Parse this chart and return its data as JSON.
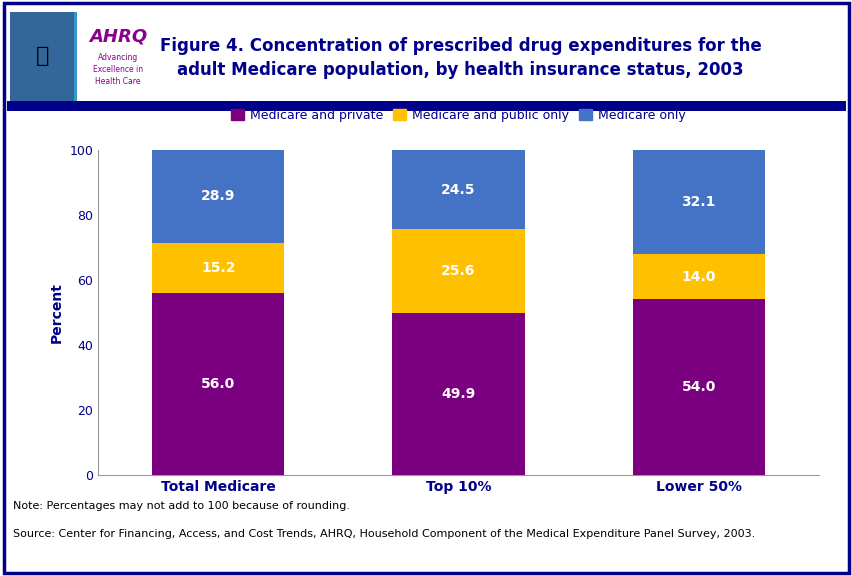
{
  "categories": [
    "Total Medicare",
    "Top 10%",
    "Lower 50%"
  ],
  "series": [
    {
      "label": "Medicare and private",
      "color": "#7B0080",
      "values": [
        56.0,
        49.9,
        54.0
      ]
    },
    {
      "label": "Medicare and public only",
      "color": "#FFC000",
      "values": [
        15.2,
        25.6,
        14.0
      ]
    },
    {
      "label": "Medicare only",
      "color": "#4472C4",
      "values": [
        28.9,
        24.5,
        32.1
      ]
    }
  ],
  "ylabel": "Percent",
  "ylim": [
    0,
    100
  ],
  "yticks": [
    0,
    20,
    40,
    60,
    80,
    100
  ],
  "title_line1": "Figure 4. Concentration of prescribed drug expenditures for the",
  "title_line2": "adult Medicare population, by health insurance status, 2003",
  "note_line1": "Note: Percentages may not add to 100 because of rounding.",
  "note_line2": "Source: Center for Financing, Access, and Cost Trends, AHRQ, Household Component of the Medical Expenditure Panel Survey, 2003.",
  "bg_color": "#FFFFFF",
  "border_color": "#00008B",
  "title_color": "#00008B",
  "tick_label_color": "#00008B",
  "bar_width": 0.55,
  "bar_value_fontsize": 10,
  "bar_value_color": "#FFFFFF",
  "legend_fontsize": 9,
  "ylabel_fontsize": 10,
  "xtick_fontsize": 10,
  "ytick_fontsize": 9,
  "note_fontsize": 8,
  "title_fontsize": 12
}
